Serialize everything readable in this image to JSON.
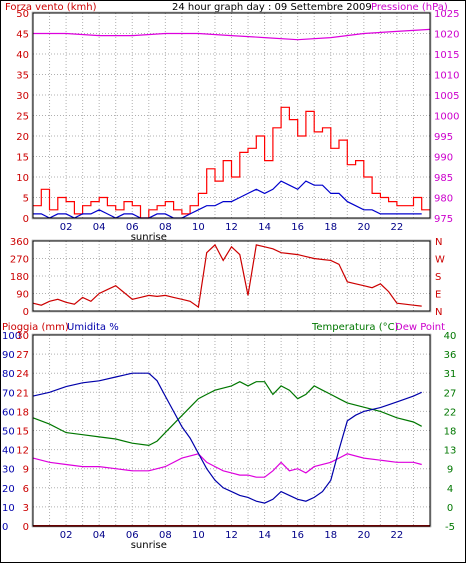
{
  "title": "24 hour graph day : 09 Settembre 2009",
  "panels": {
    "wind": {
      "left_label": "Forza vento (kmh)",
      "right_label": "Pressione (hPa)",
      "left_ticks": [
        "50",
        "45",
        "40",
        "35",
        "30",
        "25",
        "20",
        "15",
        "10",
        "5",
        "0"
      ],
      "right_ticks": [
        "1025",
        "1020",
        "1015",
        "1010",
        "1005",
        "1000",
        "995",
        "990",
        "985",
        "980",
        "975"
      ],
      "x_ticks": [
        "02",
        "04",
        "06",
        "08",
        "10",
        "12",
        "14",
        "16",
        "18",
        "20",
        "22"
      ],
      "marker": "sunrise"
    },
    "direction": {
      "left_ticks": [
        "360",
        "270",
        "180",
        "90",
        "0"
      ],
      "right_ticks": [
        "N",
        "W",
        "S",
        "E",
        "N"
      ]
    },
    "rain": {
      "left_label_1": "Pioggia (mm)",
      "left_label_2": "Umidita %",
      "right_label_1": "Temperatura (°C)",
      "right_label_2": "Dew Point",
      "left_ticks_pct": [
        "100",
        "90",
        "80",
        "70",
        "60",
        "50",
        "40",
        "30",
        "20",
        "10",
        "0"
      ],
      "left_ticks_rain": [
        "30",
        "27",
        "24",
        "21",
        "18",
        "15",
        "12",
        "9",
        "6",
        "3",
        "0"
      ],
      "right_ticks": [
        "40",
        "36",
        "31",
        "27",
        "22",
        "18",
        "13",
        "9",
        "4",
        "0",
        "-5"
      ],
      "x_ticks": [
        "02",
        "04",
        "06",
        "08",
        "10",
        "12",
        "14",
        "16",
        "18",
        "20",
        "22"
      ],
      "marker": "sunrise"
    }
  },
  "colors": {
    "wind_gust": "#ff0000",
    "wind_avg": "#0000cc",
    "pressure": "#dd00dd",
    "direction": "#cc0000",
    "humidity": "#0000aa",
    "temperature": "#007700",
    "dewpoint": "#dd00dd",
    "rain": "#cc0000",
    "grid": "#b0b0b0"
  },
  "chart_data": [
    {
      "type": "line",
      "title": "24 hour graph day : 09 Settembre 2009",
      "xlabel": "",
      "xlim": [
        0,
        24
      ],
      "ylim_left": [
        0,
        50
      ],
      "ylim_right": [
        975,
        1025
      ],
      "ylabel_left": "Forza vento (kmh)",
      "ylabel_right": "Pressione (hPa)",
      "series": [
        {
          "key": "gust",
          "axis": "left",
          "x": [
            0,
            0.5,
            1,
            1.5,
            2,
            2.5,
            3,
            3.5,
            4,
            4.5,
            5,
            5.5,
            6,
            6.5,
            7,
            7.5,
            8,
            8.5,
            9,
            9.5,
            10,
            10.5,
            11,
            11.5,
            12,
            12.5,
            13,
            13.5,
            14,
            14.5,
            15,
            15.5,
            16,
            16.5,
            17,
            17.5,
            18,
            18.5,
            19,
            19.5,
            20,
            20.5,
            21,
            21.5,
            22,
            22.5,
            23,
            23.5
          ],
          "y": [
            3,
            7,
            2,
            5,
            4,
            1,
            3,
            4,
            5,
            3,
            2,
            4,
            3,
            0,
            2,
            3,
            4,
            2,
            1,
            3,
            6,
            12,
            9,
            14,
            10,
            16,
            17,
            20,
            14,
            22,
            27,
            24,
            20,
            26,
            21,
            22,
            17,
            19,
            13,
            14,
            10,
            6,
            5,
            4,
            3,
            3,
            5,
            2
          ]
        },
        {
          "key": "avg",
          "axis": "left",
          "x": [
            0,
            0.5,
            1,
            1.5,
            2,
            2.5,
            3,
            3.5,
            4,
            4.5,
            5,
            5.5,
            6,
            6.5,
            7,
            7.5,
            8,
            8.5,
            9,
            9.5,
            10,
            10.5,
            11,
            11.5,
            12,
            12.5,
            13,
            13.5,
            14,
            14.5,
            15,
            15.5,
            16,
            16.5,
            17,
            17.5,
            18,
            18.5,
            19,
            19.5,
            20,
            20.5,
            21,
            21.5,
            22,
            22.5,
            23,
            23.5
          ],
          "y": [
            1,
            1,
            0,
            1,
            1,
            0,
            1,
            1,
            2,
            1,
            0,
            1,
            1,
            0,
            0,
            1,
            1,
            0,
            0,
            1,
            2,
            3,
            3,
            4,
            4,
            5,
            6,
            7,
            6,
            7,
            9,
            8,
            7,
            9,
            8,
            8,
            6,
            6,
            4,
            3,
            2,
            2,
            1,
            1,
            1,
            1,
            1,
            1
          ]
        },
        {
          "key": "pressure",
          "axis": "right",
          "x": [
            0,
            2,
            4,
            6,
            8,
            10,
            12,
            14,
            16,
            18,
            20,
            22,
            24
          ],
          "y": [
            1020,
            1020,
            1019.5,
            1019.5,
            1020,
            1020,
            1019.5,
            1019,
            1018.5,
            1019,
            1020,
            1020.5,
            1021
          ]
        }
      ]
    },
    {
      "type": "line",
      "xlim": [
        0,
        24
      ],
      "ylim": [
        0,
        360
      ],
      "series": [
        {
          "key": "direction",
          "x": [
            0,
            0.5,
            1,
            1.5,
            2,
            2.5,
            3,
            3.5,
            4,
            4.5,
            5,
            5.5,
            6,
            6.5,
            7,
            7.5,
            8,
            8.5,
            9,
            9.5,
            10,
            10.5,
            11,
            11.5,
            12,
            12.5,
            13,
            13.5,
            14,
            14.5,
            15,
            15.5,
            16,
            16.5,
            17,
            17.5,
            18,
            18.5,
            19,
            19.5,
            20,
            20.5,
            21,
            21.5,
            22,
            22.5,
            23,
            23.5
          ],
          "y": [
            40,
            30,
            50,
            60,
            45,
            35,
            70,
            50,
            90,
            110,
            130,
            95,
            60,
            70,
            80,
            75,
            80,
            70,
            60,
            50,
            20,
            300,
            340,
            260,
            330,
            290,
            80,
            340,
            330,
            320,
            300,
            295,
            290,
            280,
            270,
            265,
            260,
            240,
            150,
            140,
            130,
            120,
            140,
            100,
            40,
            35,
            30,
            25
          ]
        }
      ]
    },
    {
      "type": "line",
      "xlim": [
        0,
        24
      ],
      "ylim_left": [
        0,
        100
      ],
      "ylim_right": [
        -5,
        40
      ],
      "ylabel_left": "Umidita %",
      "ylabel_right": "Temperatura (°C)",
      "series": [
        {
          "key": "humidity",
          "axis": "left",
          "x": [
            0,
            1,
            2,
            3,
            4,
            5,
            6,
            7,
            7.5,
            8,
            8.5,
            9,
            9.5,
            10,
            10.5,
            11,
            11.5,
            12,
            12.5,
            13,
            13.5,
            14,
            14.5,
            15,
            15.5,
            16,
            16.5,
            17,
            17.5,
            18,
            18.5,
            19,
            19.5,
            20,
            21,
            22,
            23,
            23.5
          ],
          "y": [
            68,
            70,
            73,
            75,
            76,
            78,
            80,
            80,
            76,
            68,
            60,
            52,
            46,
            38,
            30,
            24,
            20,
            18,
            16,
            15,
            13,
            12,
            14,
            18,
            16,
            14,
            13,
            15,
            18,
            24,
            40,
            55,
            58,
            60,
            62,
            65,
            68,
            70
          ]
        },
        {
          "key": "temperature",
          "axis": "right",
          "x": [
            0,
            1,
            2,
            3,
            4,
            5,
            6,
            7,
            7.5,
            8,
            8.5,
            9,
            9.5,
            10,
            10.5,
            11,
            12,
            12.5,
            13,
            13.5,
            14,
            14.5,
            15,
            15.5,
            16,
            16.5,
            17,
            17.5,
            18,
            18.5,
            19,
            20,
            21,
            22,
            23,
            23.5
          ],
          "y": [
            20.5,
            19,
            17,
            16.5,
            16,
            15.5,
            14.5,
            14,
            15,
            17,
            19,
            21,
            23,
            25,
            26,
            27,
            28,
            29,
            28,
            29,
            29,
            26,
            28,
            27,
            25,
            26,
            28,
            27,
            26,
            25,
            24,
            23,
            22,
            20.5,
            19.5,
            18.5
          ]
        },
        {
          "key": "dewpoint",
          "axis": "right",
          "x": [
            0,
            1,
            2,
            3,
            4,
            5,
            6,
            7,
            8,
            9,
            10,
            10.5,
            11,
            11.5,
            12,
            12.5,
            13,
            13.5,
            14,
            14.5,
            15,
            15.5,
            16,
            16.5,
            17,
            18,
            18.5,
            19,
            20,
            21,
            22,
            23,
            23.5
          ],
          "y": [
            11,
            10,
            9.5,
            9,
            9,
            8.5,
            8,
            8,
            9,
            11,
            12,
            10,
            9,
            8,
            7.5,
            7,
            7,
            6.5,
            6.5,
            8,
            10,
            8,
            8.5,
            7.5,
            9,
            10,
            11,
            12,
            11,
            10.5,
            10,
            10,
            9.5
          ]
        },
        {
          "key": "rain",
          "axis": "left",
          "x": [
            0,
            24
          ],
          "y": [
            0,
            0
          ]
        }
      ]
    }
  ]
}
